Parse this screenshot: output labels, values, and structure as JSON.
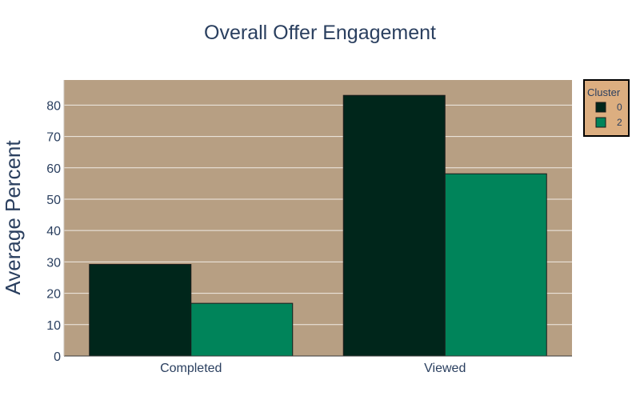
{
  "chart_data": {
    "type": "bar",
    "title": "Overall Offer Engagement",
    "xlabel": "",
    "ylabel": "Average Percent",
    "categories": [
      "Completed",
      "Viewed"
    ],
    "ylim": [
      0,
      88
    ],
    "yticks": [
      0,
      10,
      20,
      30,
      40,
      50,
      60,
      70,
      80
    ],
    "grid": true,
    "legend": {
      "title": "Cluster",
      "placement": "top-right"
    },
    "series": [
      {
        "name": "0",
        "values": [
          29.2,
          83.1
        ],
        "color": "#00261b"
      },
      {
        "name": "2",
        "values": [
          16.8,
          58.1
        ],
        "color": "#00845a"
      }
    ],
    "colors": {
      "plot_bg": "#b79f83",
      "legend_bg": "#dcae80",
      "text": "#2a3f5f",
      "grid": "#f0ebe4"
    }
  }
}
